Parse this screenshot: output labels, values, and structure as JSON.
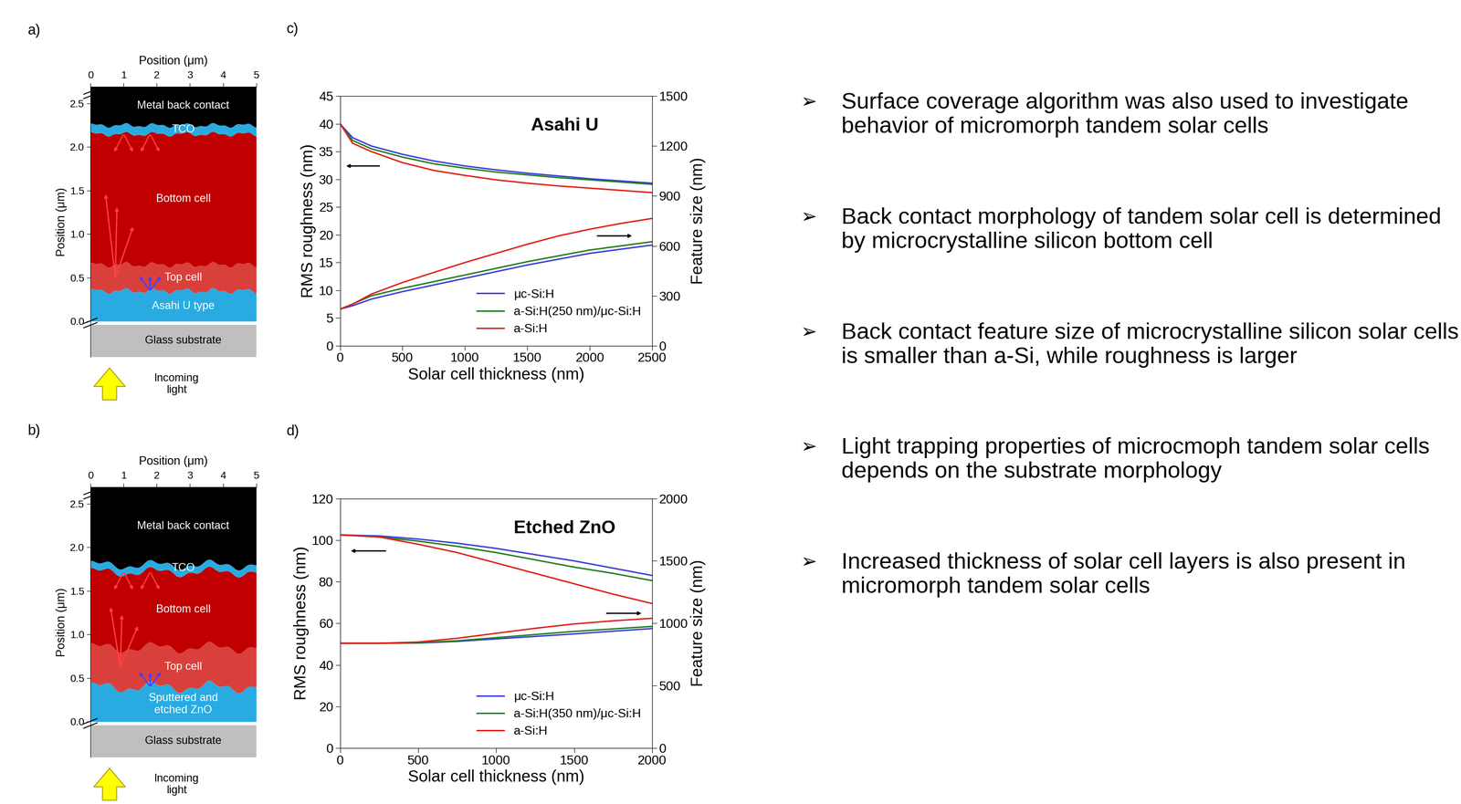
{
  "panels": [
    {
      "label": "a)",
      "xlabel": "Position (μm)",
      "ylabel": "Position (μm)",
      "xlim": [
        0,
        5
      ],
      "xticks": [
        0,
        1,
        2,
        3,
        4,
        5
      ],
      "ylim": [
        -0.41,
        2.69
      ],
      "yticks": [
        {
          "value": 0,
          "label": "0.0"
        },
        {
          "value": 0.5,
          "label": "0.5"
        },
        {
          "value": 1,
          "label": "1.0"
        },
        {
          "value": 1.5,
          "label": "1.5"
        },
        {
          "value": 2,
          "label": "2.0"
        },
        {
          "value": 2.5,
          "label": "2.5"
        }
      ],
      "layers": [
        {
          "name": "Glass substrate",
          "color": "#bfbfbf",
          "bottom": -0.41,
          "top": -0.04
        },
        {
          "name": "Asahi U type",
          "color": "#29abe2",
          "bottom": 0,
          "top": 0.35
        },
        {
          "name": "Top cell",
          "color": "#d9403c",
          "bottom": 0.35,
          "top": 0.65
        },
        {
          "name": "Bottom cell",
          "color": "#c00000",
          "bottom": 0.65,
          "top": 2.15
        },
        {
          "name": "TCO",
          "color": "#29abe2",
          "bottom": 2.15,
          "top": 2.25
        },
        {
          "name": "Metal back contact",
          "color": "#000000",
          "bottom": 2.25,
          "top": 2.69
        }
      ],
      "light_label": "Incoming\nlight"
    },
    {
      "label": "b)",
      "xlabel": "Position (μm)",
      "ylabel": "Position (μm)",
      "xlim": [
        0,
        5
      ],
      "xticks": [
        0,
        1,
        2,
        3,
        4,
        5
      ],
      "ylim": [
        -0.41,
        2.69
      ],
      "yticks": [
        {
          "value": 0,
          "label": "0.0"
        },
        {
          "value": 0.5,
          "label": "0.5"
        },
        {
          "value": 1,
          "label": "1.0"
        },
        {
          "value": 1.5,
          "label": "1.5"
        },
        {
          "value": 2,
          "label": "2.0"
        },
        {
          "value": 2.5,
          "label": "2.5"
        }
      ],
      "layers": [
        {
          "name": "Glass substrate",
          "color": "#bfbfbf",
          "bottom": -0.41,
          "top": -0.04
        },
        {
          "name": "Sputtered and\netched ZnO",
          "color": "#29abe2",
          "bottom": 0,
          "top": 0.4
        },
        {
          "name": "Top cell",
          "color": "#d9403c",
          "bottom": 0.4,
          "top": 0.85
        },
        {
          "name": "Bottom cell",
          "color": "#c00000",
          "bottom": 0.85,
          "top": 1.72
        },
        {
          "name": "TCO",
          "color": "#29abe2",
          "bottom": 1.72,
          "top": 1.8
        },
        {
          "name": "Metal back contact",
          "color": "#000000",
          "bottom": 1.8,
          "top": 2.69
        }
      ],
      "light_label": "Incoming\nlight"
    }
  ],
  "chart_data": [
    {
      "type": "line",
      "panel_label": "c)",
      "title": "Asahi U",
      "xlabel": "Solar cell thickness (nm)",
      "ylabel": "RMS roughness (nm)",
      "y2label": "Feature size (nm)",
      "xlim": [
        0,
        2500
      ],
      "xticks": [
        0,
        500,
        1000,
        1500,
        2000,
        2500
      ],
      "ylim": [
        0,
        45
      ],
      "yticks": [
        0,
        5,
        10,
        15,
        20,
        25,
        30,
        35,
        40,
        45
      ],
      "y2lim": [
        0,
        1500
      ],
      "y2ticks": [
        0,
        300,
        600,
        900,
        1200,
        1500
      ],
      "legend": "lower right",
      "x": [
        0,
        100,
        250,
        500,
        750,
        1000,
        1250,
        1500,
        1750,
        2000,
        2250,
        2500
      ],
      "series": [
        {
          "name": "μc-Si:H",
          "color": "#3c3cdc",
          "values": [
            40,
            37.5,
            36,
            34.5,
            33.3,
            32.4,
            31.7,
            31.1,
            30.6,
            30.1,
            29.7,
            29.3
          ]
        },
        {
          "name": "a-Si:H(250 nm)/μc-Si:H",
          "color": "#1f7f1f",
          "values": [
            40,
            37,
            35.5,
            34,
            32.8,
            32,
            31.3,
            30.8,
            30.3,
            29.9,
            29.5,
            29.1
          ]
        },
        {
          "name": "a-Si:H",
          "color": "#e0201b",
          "values": [
            40,
            36.5,
            35,
            33,
            31.6,
            30.7,
            29.9,
            29.3,
            28.8,
            28.4,
            28,
            27.6
          ]
        },
        {
          "name": "μc-Si:H",
          "color": "#3c3cdc",
          "axis": "y2",
          "values": [
            220,
            240,
            280,
            325,
            365,
            405,
            445,
            485,
            520,
            555,
            580,
            605
          ]
        },
        {
          "name": "a-Si:H(250 nm)/μc-Si:H",
          "color": "#1f7f1f",
          "axis": "y2",
          "values": [
            220,
            250,
            300,
            345,
            385,
            425,
            465,
            505,
            540,
            575,
            600,
            625
          ]
        },
        {
          "name": "a-Si:H",
          "color": "#e0201b",
          "axis": "y2",
          "values": [
            220,
            250,
            310,
            380,
            440,
            500,
            555,
            610,
            660,
            700,
            735,
            765
          ]
        }
      ]
    },
    {
      "type": "line",
      "panel_label": "d)",
      "title": "Etched ZnO",
      "xlabel": "Solar cell thickness (nm)",
      "ylabel": "RMS roughness (nm)",
      "y2label": "Feature size (nm)",
      "xlim": [
        0,
        2000
      ],
      "xticks": [
        0,
        500,
        1000,
        1500,
        2000
      ],
      "ylim": [
        0,
        120
      ],
      "yticks": [
        0,
        20,
        40,
        60,
        80,
        100,
        120
      ],
      "y2lim": [
        0,
        2000
      ],
      "y2ticks": [
        0,
        500,
        1000,
        1500,
        2000
      ],
      "legend": "lower right",
      "x": [
        0,
        250,
        500,
        750,
        1000,
        1250,
        1500,
        1750,
        2000
      ],
      "series": [
        {
          "name": "μc-Si:H",
          "color": "#3c3cdc",
          "values": [
            102.5,
            102,
            100.5,
            98.5,
            96,
            93,
            90,
            86.5,
            83
          ]
        },
        {
          "name": "a-Si:H(350 nm)/μc-Si:H",
          "color": "#1f7f1f",
          "values": [
            102.5,
            101.5,
            99.5,
            97,
            94,
            90.5,
            87,
            84,
            80.5
          ]
        },
        {
          "name": "a-Si:H",
          "color": "#e0201b",
          "values": [
            102.5,
            101.5,
            98,
            94,
            89,
            84,
            79,
            74,
            69.5
          ]
        },
        {
          "name": "μc-Si:H",
          "color": "#3c3cdc",
          "axis": "y2",
          "values": [
            840,
            840,
            842,
            855,
            875,
            895,
            915,
            937,
            958
          ]
        },
        {
          "name": "a-Si:H(350 nm)/μc-Si:H",
          "color": "#1f7f1f",
          "axis": "y2",
          "values": [
            840,
            840,
            845,
            860,
            885,
            910,
            935,
            955,
            975
          ]
        },
        {
          "name": "a-Si:H",
          "color": "#e0201b",
          "axis": "y2",
          "values": [
            840,
            840,
            850,
            880,
            920,
            960,
            995,
            1020,
            1040
          ]
        }
      ]
    }
  ],
  "bullets": {
    "symbol": "➢",
    "items": [
      "Surface coverage algorithm was also used to investigate behavior of micromorph tandem solar cells",
      "Back contact morphology of tandem solar cell is determined by microcrystalline silicon bottom cell",
      "Back contact feature size of microcrystalline silicon solar cells is smaller than a-Si, while roughness is larger",
      "Light trapping properties of microcmoph tandem solar cells depends on the substrate morphology",
      "Increased thickness of solar cell layers is also present in micromorph tandem solar cells"
    ]
  }
}
